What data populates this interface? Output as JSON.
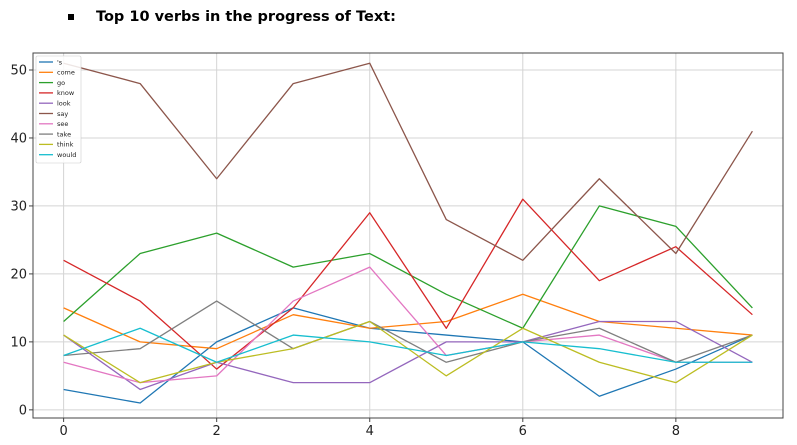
{
  "heading": {
    "text": "Top 10 verbs in the progress of Text:",
    "bullet_icon": "square-bullet-icon"
  },
  "chart_data": {
    "type": "line",
    "title": "",
    "xlabel": "",
    "ylabel": "",
    "x": [
      0,
      1,
      2,
      3,
      4,
      5,
      6,
      7,
      8,
      9
    ],
    "xlim": [
      -0.4,
      9.4
    ],
    "ylim": [
      -1.2,
      52.5
    ],
    "x_ticks": [
      0,
      2,
      4,
      6,
      8
    ],
    "y_ticks": [
      0,
      10,
      20,
      30,
      40,
      50
    ],
    "grid": true,
    "legend_position": "top-left",
    "series": [
      {
        "name": "'s",
        "color": "#1f77b4",
        "values": [
          3,
          1,
          10,
          15,
          12,
          11,
          10,
          2,
          6,
          11
        ]
      },
      {
        "name": "come",
        "color": "#ff7f0e",
        "values": [
          15,
          10,
          9,
          14,
          12,
          13,
          17,
          13,
          12,
          11
        ]
      },
      {
        "name": "go",
        "color": "#2ca02c",
        "values": [
          13,
          23,
          26,
          21,
          23,
          17,
          12,
          30,
          27,
          15
        ]
      },
      {
        "name": "know",
        "color": "#d62728",
        "values": [
          22,
          16,
          6,
          15,
          29,
          12,
          31,
          19,
          24,
          14
        ]
      },
      {
        "name": "look",
        "color": "#9467bd",
        "values": [
          11,
          3,
          7,
          4,
          4,
          10,
          10,
          13,
          13,
          7
        ]
      },
      {
        "name": "say",
        "color": "#8c564b",
        "values": [
          51,
          48,
          34,
          48,
          51,
          28,
          22,
          34,
          23,
          41
        ]
      },
      {
        "name": "see",
        "color": "#e377c2",
        "values": [
          7,
          4,
          5,
          16,
          21,
          8,
          10,
          11,
          7,
          7
        ]
      },
      {
        "name": "take",
        "color": "#7f7f7f",
        "values": [
          8,
          9,
          16,
          9,
          13,
          7,
          10,
          12,
          7,
          11
        ]
      },
      {
        "name": "think",
        "color": "#bcbd22",
        "values": [
          11,
          4,
          7,
          9,
          13,
          5,
          12,
          7,
          4,
          11
        ]
      },
      {
        "name": "would",
        "color": "#17becf",
        "values": [
          8,
          12,
          7,
          11,
          10,
          8,
          10,
          9,
          7,
          7
        ]
      }
    ]
  }
}
